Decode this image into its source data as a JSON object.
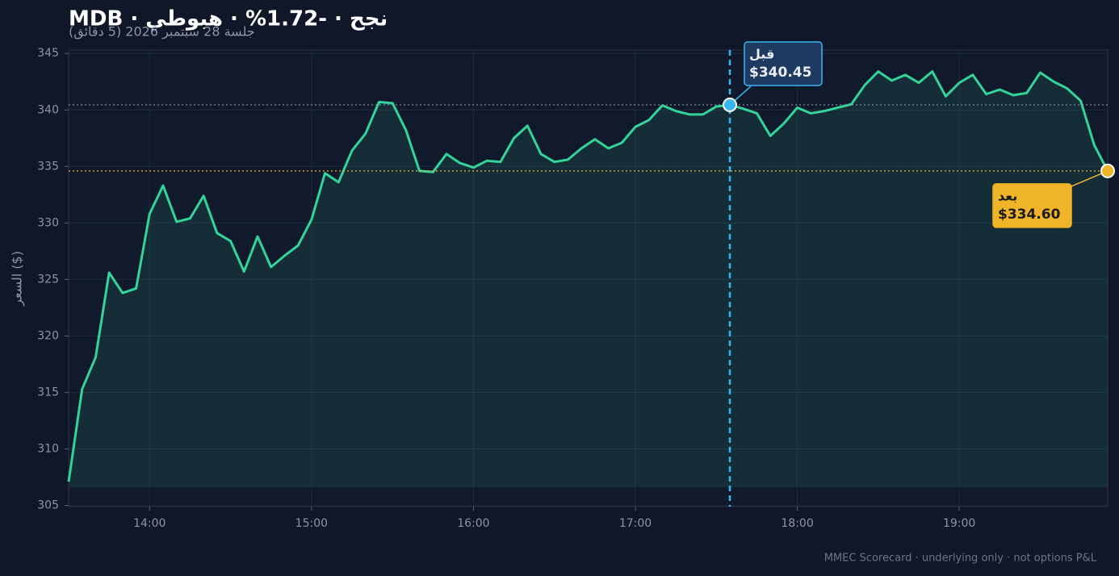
{
  "chart_data": {
    "type": "line",
    "title": "MDB · نجح · -1.72% · هبوطي",
    "subtitle": "جلسة 28 سبتمبر 2026 (5 دقائق)",
    "y_label": "السعر ($)",
    "footer": "MMEC Scorecard · underlying only · not options P&L",
    "x": [
      "13:30",
      "13:35",
      "13:40",
      "13:45",
      "13:50",
      "13:55",
      "14:00",
      "14:05",
      "14:10",
      "14:15",
      "14:20",
      "14:25",
      "14:30",
      "14:35",
      "14:40",
      "14:45",
      "14:50",
      "14:55",
      "15:00",
      "15:05",
      "15:10",
      "15:15",
      "15:20",
      "15:25",
      "15:30",
      "15:35",
      "15:40",
      "15:45",
      "15:50",
      "15:55",
      "16:00",
      "16:05",
      "16:10",
      "16:15",
      "16:20",
      "16:25",
      "16:30",
      "16:35",
      "16:40",
      "16:45",
      "16:50",
      "16:55",
      "17:00",
      "17:05",
      "17:10",
      "17:15",
      "17:20",
      "17:25",
      "17:30",
      "17:35",
      "17:40",
      "17:45",
      "17:50",
      "17:55",
      "18:00",
      "18:05",
      "18:10",
      "18:15",
      "18:20",
      "18:25",
      "18:30",
      "18:35",
      "18:40",
      "18:45",
      "18:50",
      "18:55",
      "19:00",
      "19:05",
      "19:10",
      "19:15",
      "19:20",
      "19:25",
      "19:30",
      "19:35",
      "19:40",
      "19:45",
      "19:50",
      "19:55"
    ],
    "series": [
      {
        "name": "MDB",
        "color": "#34d399",
        "values": [
          307.1,
          315.3,
          318.1,
          325.6,
          323.8,
          324.2,
          330.8,
          333.3,
          330.1,
          330.4,
          332.4,
          329.1,
          328.4,
          325.7,
          328.8,
          326.1,
          327.1,
          328.0,
          330.3,
          334.4,
          333.6,
          336.4,
          337.9,
          340.7,
          340.6,
          338.2,
          334.6,
          334.5,
          336.1,
          335.3,
          334.9,
          335.5,
          335.4,
          337.5,
          338.6,
          336.1,
          335.4,
          335.6,
          336.6,
          337.4,
          336.6,
          337.1,
          338.5,
          339.1,
          340.4,
          339.9,
          339.6,
          339.6,
          340.3,
          340.45,
          340.1,
          339.7,
          337.7,
          338.8,
          340.2,
          339.7,
          339.9,
          340.2,
          340.5,
          342.2,
          343.4,
          342.6,
          343.1,
          342.4,
          343.4,
          341.2,
          342.4,
          343.1,
          341.4,
          341.8,
          341.3,
          341.5,
          343.3,
          342.5,
          341.9,
          340.8,
          336.9,
          334.6
        ]
      }
    ],
    "area_base": 306.6,
    "xlim": [
      "13:30",
      "19:55"
    ],
    "xticks": [
      "14:00",
      "15:00",
      "16:00",
      "17:00",
      "18:00",
      "19:00"
    ],
    "ylim": [
      304.9,
      345.3
    ],
    "yticks": [
      305,
      310,
      315,
      320,
      325,
      330,
      335,
      340,
      345
    ],
    "grid": true,
    "annotations": [
      {
        "label": "قبل",
        "x": "17:35",
        "value": 340.45,
        "value_label": "$340.45",
        "color": "#38b6f0"
      },
      {
        "label": "بعد",
        "x": "19:55",
        "value": 334.6,
        "value_label": "$334.60",
        "color": "#f0b429"
      }
    ]
  }
}
